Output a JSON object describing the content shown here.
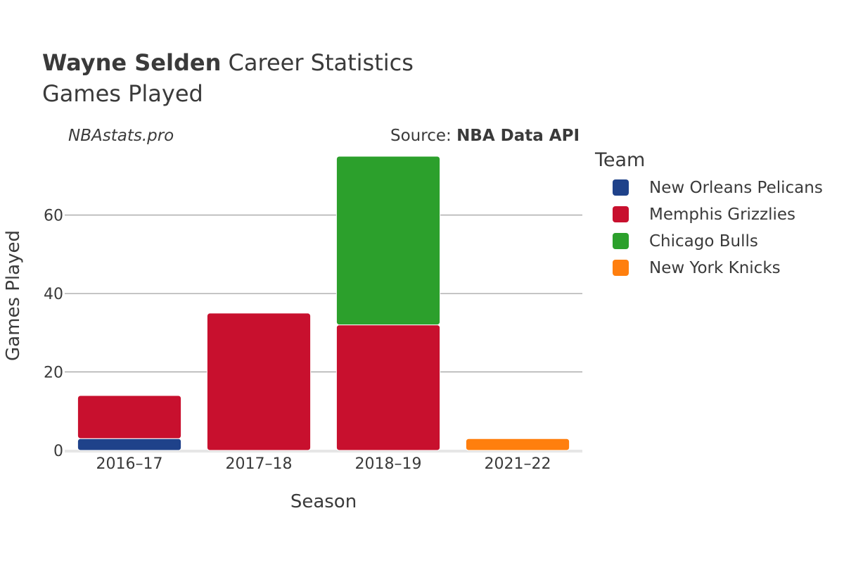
{
  "title": {
    "bold": "Wayne Selden",
    "rest": " Career Statistics",
    "subtitle": "Games Played"
  },
  "watermark": "NBAstats.pro",
  "source": {
    "prefix": "Source: ",
    "name": "NBA Data API"
  },
  "legend": {
    "title": "Team",
    "items": [
      {
        "label": "New Orleans Pelicans",
        "color": "#1f428a"
      },
      {
        "label": "Memphis Grizzlies",
        "color": "#c8102e"
      },
      {
        "label": "Chicago Bulls",
        "color": "#2ca02c"
      },
      {
        "label": "New York Knicks",
        "color": "#ff7f0e"
      }
    ]
  },
  "chart_data": {
    "type": "bar",
    "stacked": true,
    "xlabel": "Season",
    "ylabel": "Games Played",
    "categories": [
      "2016–17",
      "2017–18",
      "2018–19",
      "2021–22"
    ],
    "ylim": [
      0,
      75
    ],
    "yticks": [
      0,
      20,
      40,
      60
    ],
    "grid": true,
    "series": [
      {
        "name": "New Orleans Pelicans",
        "color": "#1f428a",
        "values": [
          3,
          0,
          0,
          0
        ]
      },
      {
        "name": "Memphis Grizzlies",
        "color": "#c8102e",
        "values": [
          11,
          35,
          32,
          0
        ]
      },
      {
        "name": "Chicago Bulls",
        "color": "#2ca02c",
        "values": [
          0,
          0,
          43,
          0
        ]
      },
      {
        "name": "New York Knicks",
        "color": "#ff7f0e",
        "values": [
          0,
          0,
          0,
          3
        ]
      }
    ]
  }
}
